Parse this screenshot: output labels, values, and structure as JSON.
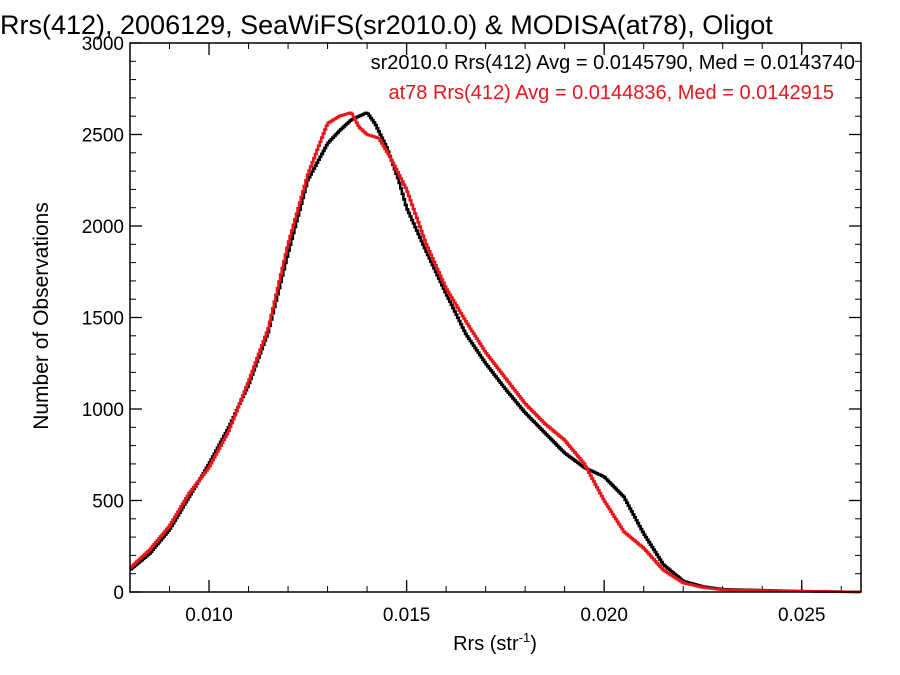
{
  "chart_data": {
    "type": "line",
    "title": "Rrs(412), 2006129, SeaWiFS(sr2010.0) & MODISA(at78), Oligot",
    "xlabel": "Rrs (str",
    "xlabel_sup": "-1",
    "xlabel_close": ")",
    "ylabel": "Number of Observations",
    "xlim": [
      0.008,
      0.0265
    ],
    "ylim": [
      0,
      3000
    ],
    "xticks": [
      0.01,
      0.015,
      0.02,
      0.025
    ],
    "xtick_labels": [
      "0.010",
      "0.015",
      "0.020",
      "0.025"
    ],
    "yticks": [
      0,
      500,
      1000,
      1500,
      2000,
      2500,
      3000
    ],
    "ytick_labels": [
      "0",
      "500",
      "1000",
      "1500",
      "2000",
      "2500",
      "3000"
    ],
    "grid": false,
    "step": "histogram",
    "annotations": [
      {
        "text": "sr2010.0 Rrs(412) Avg = 0.0145790, Med = 0.0143740",
        "color": "#000000"
      },
      {
        "text": "at78 Rrs(412) Avg = 0.0144836, Med = 0.0142915",
        "color": "#e8161b"
      }
    ],
    "series": [
      {
        "color": "#000000",
        "x": [
          0.008,
          0.0085,
          0.009,
          0.0095,
          0.01,
          0.0105,
          0.011,
          0.0115,
          0.012,
          0.0125,
          0.013,
          0.0133,
          0.0136,
          0.014,
          0.0142,
          0.0145,
          0.0148,
          0.015,
          0.0155,
          0.016,
          0.0165,
          0.017,
          0.0175,
          0.018,
          0.0185,
          0.019,
          0.0195,
          0.02,
          0.0205,
          0.021,
          0.0215,
          0.022,
          0.0225,
          0.023,
          0.024,
          0.025,
          0.0265
        ],
        "y": [
          120,
          210,
          340,
          520,
          700,
          900,
          1130,
          1420,
          1850,
          2250,
          2450,
          2520,
          2580,
          2620,
          2560,
          2430,
          2250,
          2100,
          1860,
          1630,
          1410,
          1250,
          1110,
          980,
          870,
          760,
          680,
          630,
          520,
          320,
          150,
          60,
          30,
          15,
          10,
          5,
          0
        ]
      },
      {
        "color": "#e8161b",
        "x": [
          0.008,
          0.0085,
          0.009,
          0.0095,
          0.01,
          0.0105,
          0.011,
          0.0115,
          0.012,
          0.0125,
          0.0128,
          0.013,
          0.0133,
          0.0136,
          0.0138,
          0.014,
          0.0143,
          0.0146,
          0.015,
          0.0155,
          0.016,
          0.0165,
          0.017,
          0.0175,
          0.018,
          0.0185,
          0.019,
          0.0195,
          0.02,
          0.0205,
          0.021,
          0.0215,
          0.022,
          0.0225,
          0.023,
          0.024,
          0.025,
          0.0265
        ],
        "y": [
          130,
          230,
          360,
          540,
          680,
          880,
          1150,
          1440,
          1900,
          2280,
          2450,
          2560,
          2600,
          2620,
          2540,
          2500,
          2480,
          2370,
          2200,
          1900,
          1660,
          1480,
          1310,
          1170,
          1030,
          920,
          830,
          700,
          500,
          330,
          240,
          120,
          50,
          25,
          12,
          8,
          4,
          0
        ]
      }
    ]
  }
}
